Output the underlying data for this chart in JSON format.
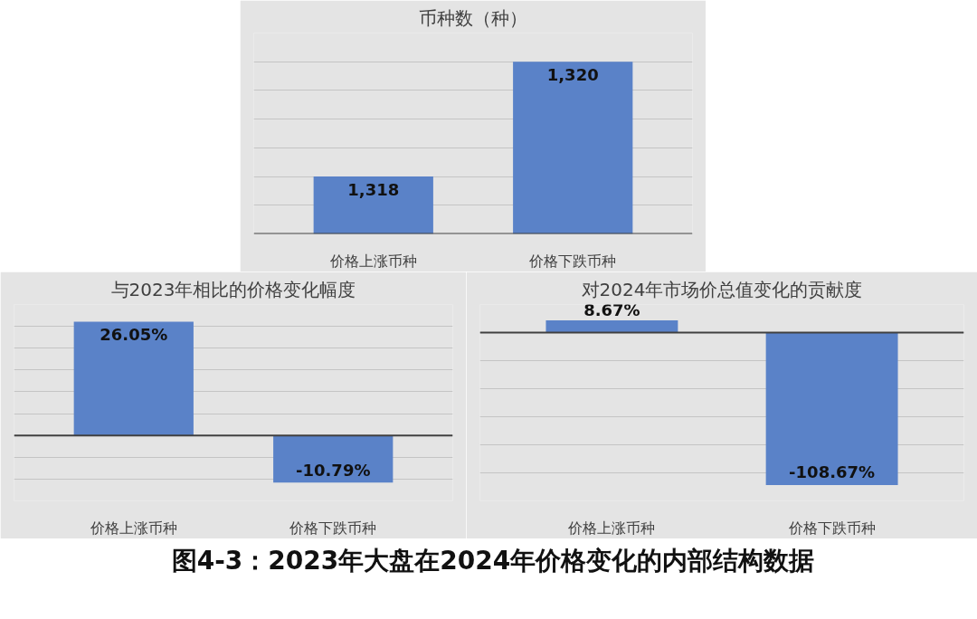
{
  "chart_data": [
    {
      "type": "bar",
      "title": "币种数（种）",
      "categories": [
        "价格上涨币种",
        "价格下跌币种"
      ],
      "values": [
        1318,
        1320
      ],
      "value_labels": [
        "1,318",
        "1,320"
      ],
      "color": "#5a82c8",
      "ylim": [
        1317,
        1320.5
      ],
      "yticks": [
        {
          "value": 1317,
          "label": null
        },
        {
          "value": 1317.5,
          "label": null
        },
        {
          "value": 1318,
          "label": null
        },
        {
          "value": 1318.5,
          "label": null
        },
        {
          "value": 1319,
          "label": null
        },
        {
          "value": 1319.5,
          "label": null
        },
        {
          "value": 1320,
          "label": null
        },
        {
          "value": 1320.5,
          "label": null
        }
      ],
      "grid": "y",
      "tick_labels": "x"
    },
    {
      "type": "bar",
      "title": "与2023年相比的价格变化幅度",
      "categories": [
        "价格上涨币种",
        "价格下跌币种"
      ],
      "values": [
        26.05,
        -10.79
      ],
      "value_labels": [
        "26.05%",
        "-10.79%"
      ],
      "color": "#5a82c8",
      "ylim": [
        -15,
        30
      ],
      "yticks": [
        {
          "value": -15,
          "label": null
        },
        {
          "value": -10,
          "label": null
        },
        {
          "value": -5,
          "label": null
        },
        {
          "value": 0,
          "label": null
        },
        {
          "value": 5,
          "label": null
        },
        {
          "value": 10,
          "label": null
        },
        {
          "value": 15,
          "label": null
        },
        {
          "value": 20,
          "label": null
        },
        {
          "value": 25,
          "label": null
        },
        {
          "value": 30,
          "label": null
        }
      ],
      "grid": "y",
      "tick_labels": "x"
    },
    {
      "type": "bar",
      "title": "对2024年市场价总值变化的贡献度",
      "categories": [
        "价格上涨币种",
        "价格下跌币种"
      ],
      "values": [
        8.67,
        -108.67
      ],
      "value_labels": [
        "8.67%",
        "-108.67%"
      ],
      "color": "#5a82c8",
      "ylim": [
        -120,
        20
      ],
      "yticks": [
        {
          "value": -120,
          "label": null
        },
        {
          "value": -100,
          "label": null
        },
        {
          "value": -80,
          "label": null
        },
        {
          "value": -60,
          "label": null
        },
        {
          "value": -40,
          "label": null
        },
        {
          "value": -20,
          "label": null
        },
        {
          "value": 0,
          "label": null
        },
        {
          "value": 20,
          "label": null
        }
      ],
      "grid": "y",
      "tick_labels": "x",
      "annotations": [
        "图4-3：2023年大盘在2024年价格变化的内部结构数据"
      ]
    }
  ]
}
